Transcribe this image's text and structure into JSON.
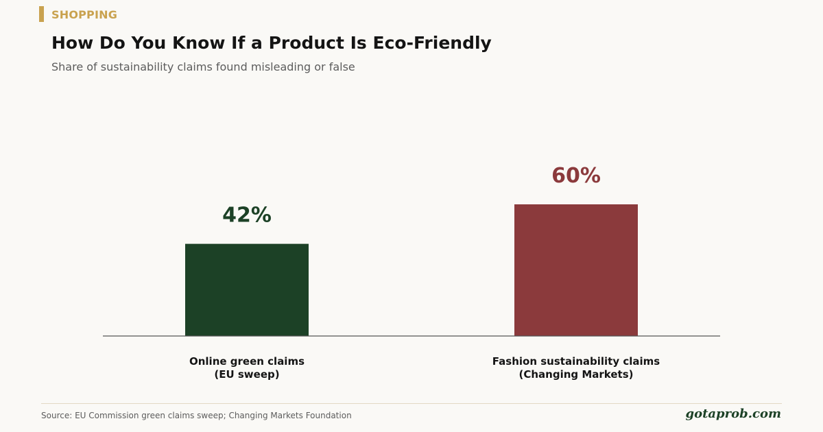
{
  "header": {
    "category": "SHOPPING",
    "title": "How Do You Know If a Product Is Eco-Friendly",
    "subtitle": "Share of sustainability claims found misleading or false"
  },
  "colors": {
    "accent": "#c9a24f",
    "green": "#1c4126",
    "red": "#8b3a3c",
    "axis": "#555555",
    "background": "#faf9f6"
  },
  "chart_data": {
    "type": "bar",
    "categories": [
      [
        "Online green claims",
        "(EU sweep)"
      ],
      [
        "Fashion sustainability claims",
        "(Changing Markets)"
      ]
    ],
    "values": [
      42,
      60
    ],
    "value_labels": [
      "42%",
      "60%"
    ],
    "bar_colors": [
      "#1c4126",
      "#8b3a3c"
    ],
    "title": "How Do You Know If a Product Is Eco-Friendly",
    "subtitle": "Share of sustainability claims found misleading or false",
    "ylim": [
      0,
      100
    ],
    "grid": false,
    "legend": "none"
  },
  "footer": {
    "source": "Source: EU Commission green claims sweep; Changing Markets Foundation",
    "brand": "gotaprob.com"
  }
}
